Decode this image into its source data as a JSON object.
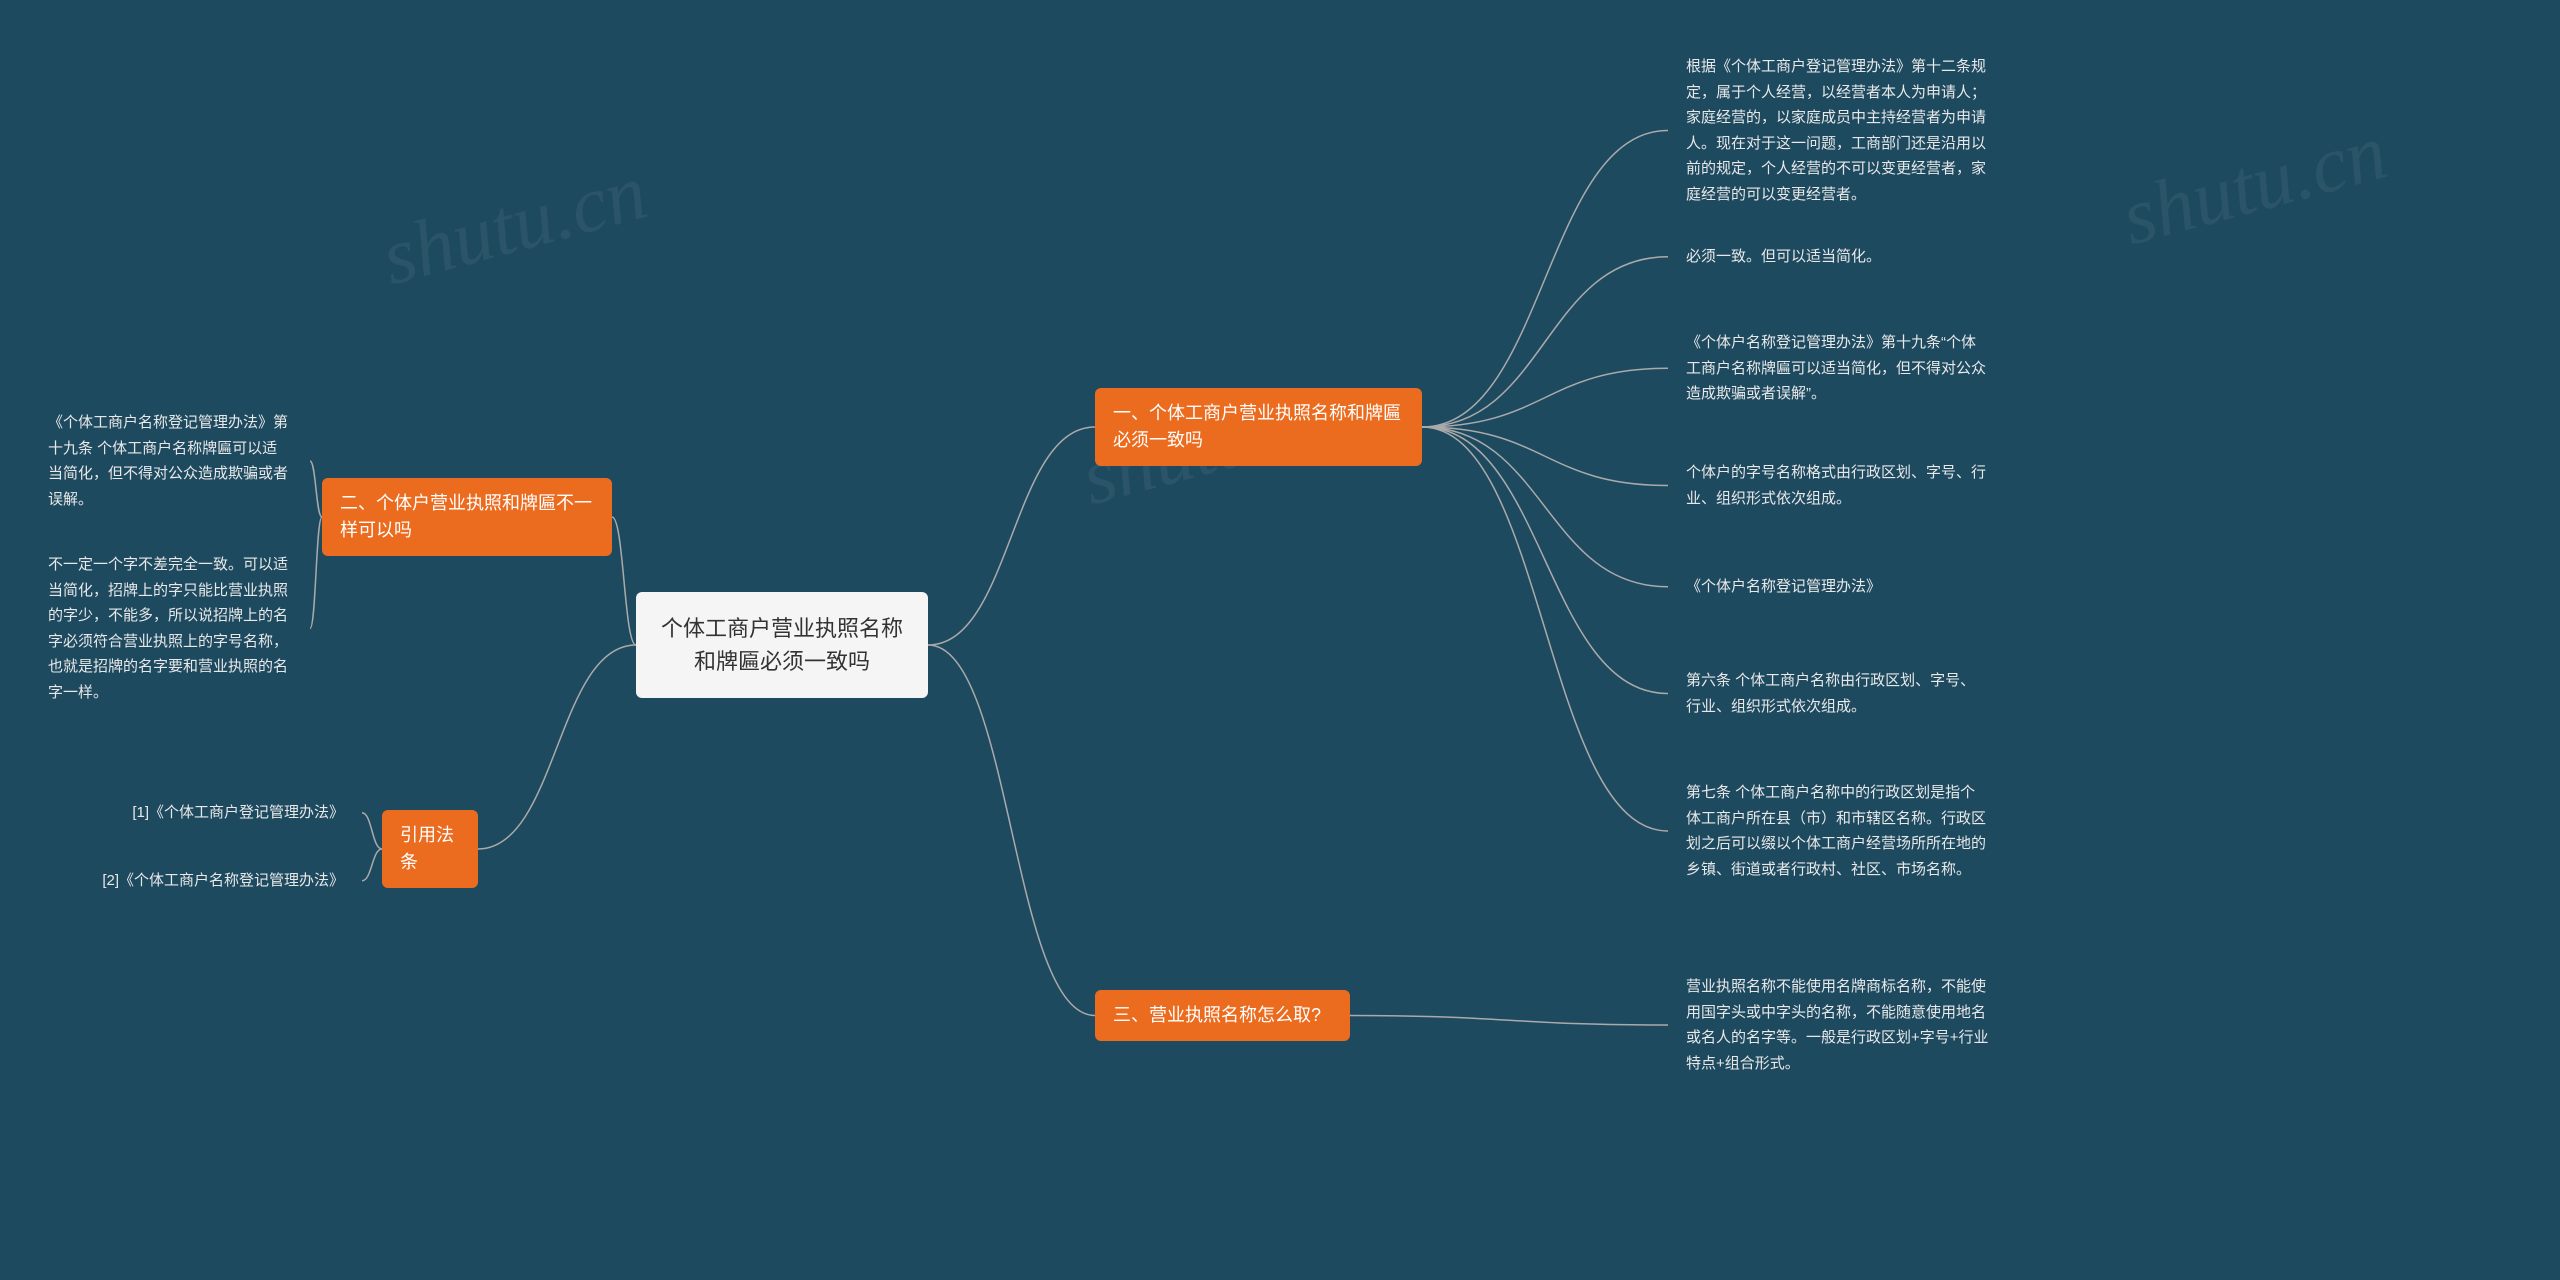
{
  "background_color": "#1e4a60",
  "node_colors": {
    "root_bg": "#f5f5f5",
    "root_fg": "#333333",
    "branch_bg": "#ec6c1f",
    "branch_fg": "#ffffff",
    "leaf_fg": "#e8e8e8"
  },
  "connector_color": "#aaaaaa",
  "watermark_text": "shutu.cn",
  "root": {
    "text": "个体工商户营业执照名称\n和牌匾必须一致吗"
  },
  "branches_right": {
    "b1": {
      "label": "一、个体工商户营业执照名称和牌匾必须一致吗",
      "leaves": [
        "根据《个体工商户登记管理办法》第十二条规定，属于个人经营，以经营者本人为申请人；家庭经营的，以家庭成员中主持经营者为申请人。现在对于这一问题，工商部门还是沿用以前的规定，个人经营的不可以变更经营者，家庭经营的可以变更经营者。",
        "必须一致。但可以适当简化。",
        "《个体户名称登记管理办法》第十九条“个体工商户名称牌匾可以适当简化，但不得对公众造成欺骗或者误解”。",
        "个体户的字号名称格式由行政区划、字号、行业、组织形式依次组成。",
        "《个体户名称登记管理办法》",
        "第六条 个体工商户名称由行政区划、字号、行业、组织形式依次组成。",
        "第七条 个体工商户名称中的行政区划是指个体工商户所在县（市）和市辖区名称。行政区划之后可以缀以个体工商户经营场所所在地的乡镇、街道或者行政村、社区、市场名称。"
      ]
    },
    "b3": {
      "label": "三、营业执照名称怎么取?",
      "leaves": [
        "营业执照名称不能使用名牌商标名称，不能使用国字头或中字头的名称，不能随意使用地名或名人的名字等。一般是行政区划+字号+行业特点+组合形式。"
      ]
    }
  },
  "branches_left": {
    "b2": {
      "label": "二、个体户营业执照和牌匾不一样可以吗",
      "leaves": [
        "《个体工商户名称登记管理办法》第十九条 个体工商户名称牌匾可以适当简化，但不得对公众造成欺骗或者误解。",
        "不一定一个字不差完全一致。可以适当简化，招牌上的字只能比营业执照的字少，不能多，所以说招牌上的名字必须符合营业执照上的字号名称，也就是招牌的名字要和营业执照的名字一样。"
      ]
    },
    "b4": {
      "label": "引用法条",
      "leaves": [
        "[1]《个体工商户登记管理办法》",
        "[2]《个体工商户名称登记管理办法》"
      ]
    }
  }
}
